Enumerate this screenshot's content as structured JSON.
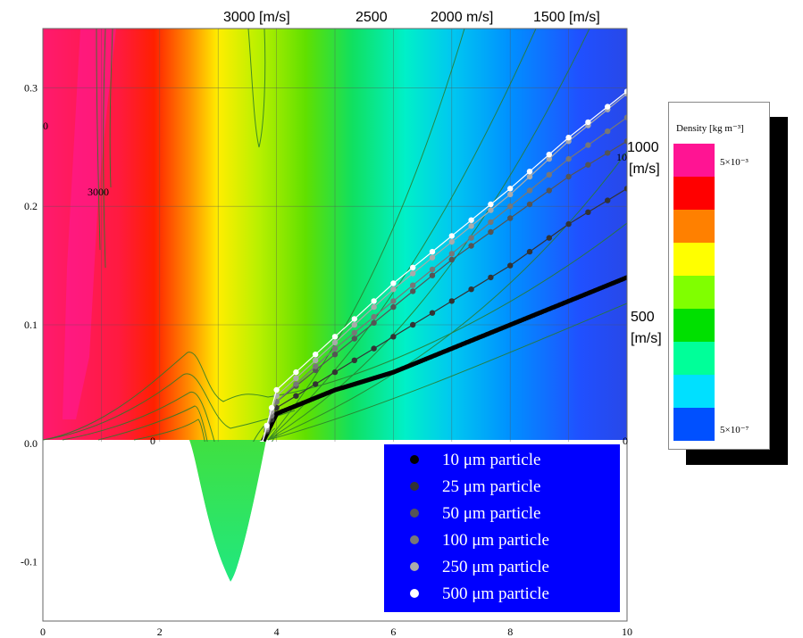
{
  "chart_data": {
    "type": "heatmap",
    "title": "",
    "xlabel": "",
    "ylabel": "",
    "xlim": [
      0,
      10
    ],
    "ylim": [
      -0.15,
      0.35
    ],
    "x_ticks": [
      "0",
      "2",
      "4",
      "6",
      "8",
      "10"
    ],
    "y_ticks": [
      "-0.1",
      "0.0",
      "0.1",
      "0.2",
      "0.3"
    ],
    "grid": true,
    "velocity_labels_top": [
      "3000 [m/s]",
      "2500",
      "2000 m/s]",
      "1500 [m/s]"
    ],
    "velocity_labels_right": [
      [
        "1000",
        "[m/s]"
      ],
      [
        "500",
        "[m/s]"
      ]
    ],
    "contour_labels": [
      "3000",
      "0",
      "0",
      "0",
      "10"
    ],
    "colorbar": {
      "title": "Density [kg m⁻³]",
      "max_label": "5×10⁻³",
      "min_label": "5×10⁻⁷",
      "colors": [
        "#ff1493",
        "#ff0000",
        "#ff8000",
        "#ffff00",
        "#80ff00",
        "#00e000",
        "#00ff99",
        "#00e0ff",
        "#0050ff"
      ]
    },
    "series": [
      {
        "name": "10 μm particle",
        "color": "#000000",
        "x": [
          3.75,
          4.0,
          5.0,
          6.0,
          7.0,
          8.0,
          9.0,
          10.0
        ],
        "y": [
          0.0,
          0.025,
          0.045,
          0.06,
          0.08,
          0.1,
          0.12,
          0.14
        ]
      },
      {
        "name": "25 μm particle",
        "color": "#333333",
        "x": [
          3.75,
          4.0,
          5.0,
          6.0,
          7.0,
          8.0,
          9.0,
          10.0
        ],
        "y": [
          0.0,
          0.03,
          0.06,
          0.09,
          0.12,
          0.15,
          0.185,
          0.215
        ]
      },
      {
        "name": "50 μm particle",
        "color": "#555555",
        "x": [
          3.75,
          4.0,
          5.0,
          6.0,
          7.0,
          8.0,
          9.0,
          10.0
        ],
        "y": [
          0.0,
          0.035,
          0.075,
          0.115,
          0.155,
          0.19,
          0.225,
          0.255
        ]
      },
      {
        "name": "100 μm particle",
        "color": "#777777",
        "x": [
          3.75,
          4.0,
          5.0,
          6.0,
          7.0,
          8.0,
          9.0,
          10.0
        ],
        "y": [
          0.0,
          0.035,
          0.08,
          0.12,
          0.16,
          0.2,
          0.24,
          0.275
        ]
      },
      {
        "name": "250 μm particle",
        "color": "#aaaaaa",
        "x": [
          3.75,
          4.0,
          5.0,
          6.0,
          7.0,
          8.0,
          9.0,
          10.0
        ],
        "y": [
          0.0,
          0.04,
          0.085,
          0.13,
          0.17,
          0.21,
          0.255,
          0.295
        ]
      },
      {
        "name": "500 μm particle",
        "color": "#ffffff",
        "x": [
          3.75,
          4.0,
          5.0,
          6.0,
          7.0,
          8.0,
          9.0,
          10.0
        ],
        "y": [
          0.0,
          0.045,
          0.09,
          0.135,
          0.175,
          0.215,
          0.258,
          0.297
        ]
      }
    ],
    "legend": {
      "placement": "bottom-right",
      "background": "#0000ff",
      "entries": [
        "10 μm particle",
        "25 μm particle",
        "50 μm particle",
        "100 μm particle",
        "250 μm particle",
        "500 μm particle"
      ]
    }
  }
}
